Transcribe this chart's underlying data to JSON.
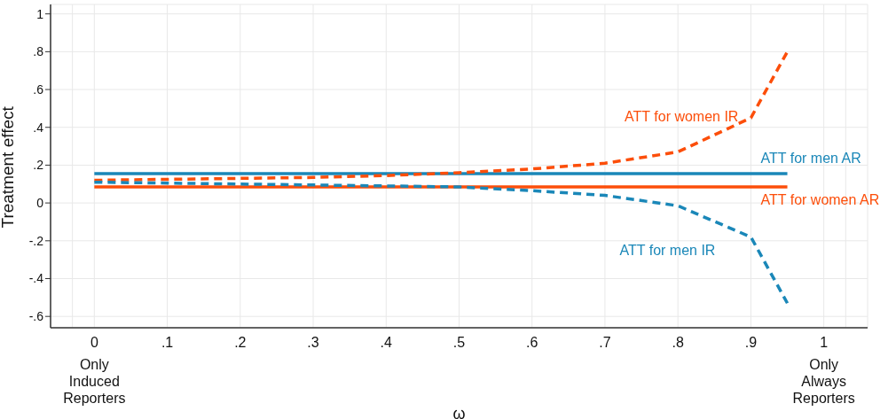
{
  "chart_data": {
    "type": "line",
    "xlabel": "ω",
    "ylabel": "Treatment effect",
    "xlim": [
      -0.06,
      1.06
    ],
    "ylim": [
      -0.66,
      1.05
    ],
    "xticks": [
      {
        "value": -0.03,
        "label": null
      },
      {
        "value": 0,
        "label": "0\nOnly\nInduced\nReporters"
      },
      {
        "value": 0.1,
        "label": ".1"
      },
      {
        "value": 0.2,
        "label": ".2"
      },
      {
        "value": 0.3,
        "label": ".3"
      },
      {
        "value": 0.4,
        "label": ".4"
      },
      {
        "value": 0.5,
        "label": ".5"
      },
      {
        "value": 0.6,
        "label": ".6"
      },
      {
        "value": 0.7,
        "label": ".7"
      },
      {
        "value": 0.8,
        "label": ".8"
      },
      {
        "value": 0.9,
        "label": ".9"
      },
      {
        "value": 1,
        "label": "1\nOnly\nAlways\nReporters"
      },
      {
        "value": 1.03,
        "label": null
      }
    ],
    "yticks": [
      {
        "value": -0.6,
        "label": "-.6"
      },
      {
        "value": -0.4,
        "label": "-.4"
      },
      {
        "value": -0.2,
        "label": "-.2"
      },
      0,
      {
        "value": 0.2,
        "label": ".2"
      },
      {
        "value": 0.4,
        "label": ".4"
      },
      {
        "value": 0.6,
        "label": ".6"
      },
      {
        "value": 0.8,
        "label": ".8"
      },
      1
    ],
    "grid": true,
    "marker": "none",
    "series": [
      {
        "name": "ATT for men AR",
        "color": "#1a87b8",
        "line_style": "solid",
        "x": [
          0,
          0.95
        ],
        "values": [
          0.155,
          0.155
        ]
      },
      {
        "name": "ATT for women AR",
        "color": "#fc4e0a",
        "line_style": "solid",
        "x": [
          0,
          0.95
        ],
        "values": [
          0.085,
          0.085
        ]
      },
      {
        "name": "ATT for women IR",
        "color": "#fc4e0a",
        "line_style": "dashed",
        "x": [
          0,
          0.1,
          0.2,
          0.3,
          0.4,
          0.5,
          0.6,
          0.7,
          0.8,
          0.9,
          0.95
        ],
        "values": [
          0.12,
          0.125,
          0.13,
          0.135,
          0.145,
          0.16,
          0.18,
          0.21,
          0.27,
          0.45,
          0.8
        ]
      },
      {
        "name": "ATT for men IR",
        "color": "#1a87b8",
        "line_style": "dashed",
        "x": [
          0,
          0.1,
          0.2,
          0.3,
          0.4,
          0.5,
          0.6,
          0.7,
          0.8,
          0.9,
          0.95
        ],
        "values": [
          0.11,
          0.105,
          0.1,
          0.095,
          0.09,
          0.085,
          0.065,
          0.04,
          -0.015,
          -0.18,
          -0.53
        ]
      }
    ]
  }
}
